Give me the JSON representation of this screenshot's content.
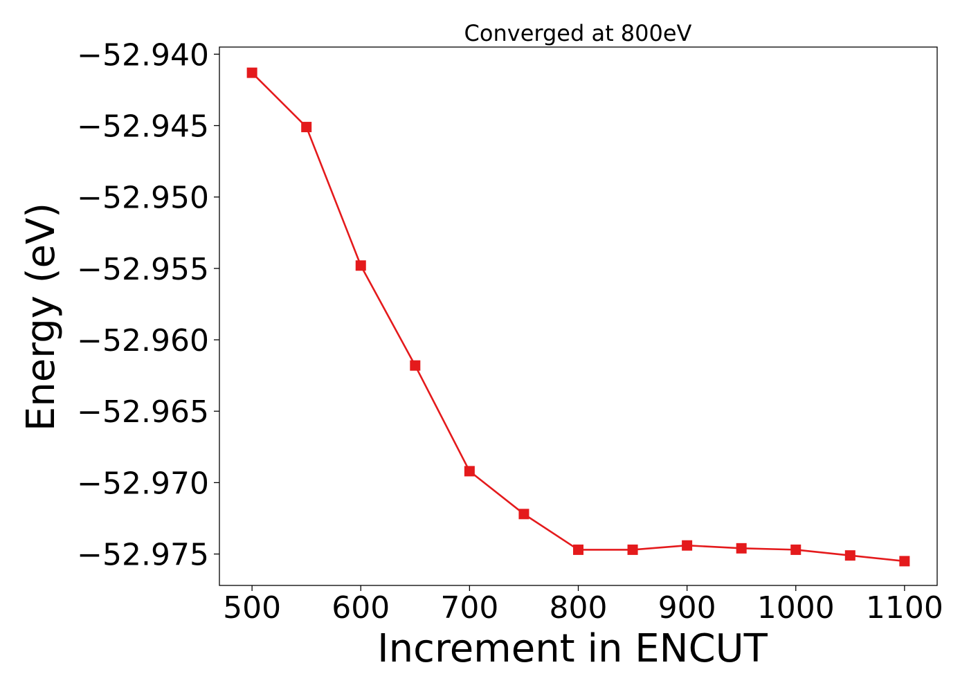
{
  "chart_data": {
    "type": "line",
    "title": "Converged at 800eV",
    "xlabel": "Increment in ENCUT",
    "ylabel": "Energy (eV)",
    "x": [
      500,
      550,
      600,
      650,
      700,
      750,
      800,
      850,
      900,
      950,
      1000,
      1050,
      1100
    ],
    "series": [
      {
        "values": [
          -52.9413,
          -52.9451,
          -52.9548,
          -52.9618,
          -52.9692,
          -52.9722,
          -52.9747,
          -52.9747,
          -52.9744,
          -52.9746,
          -52.9747,
          -52.9751,
          -52.9755
        ],
        "color": "#e41a1c",
        "marker": "square"
      }
    ],
    "xlim": [
      470,
      1130
    ],
    "ylim": [
      -52.9772,
      -52.9395
    ],
    "xticks": [
      500,
      600,
      700,
      800,
      900,
      1000,
      1100
    ],
    "xtick_labels": [
      "500",
      "600",
      "700",
      "800",
      "900",
      "1000",
      "1100"
    ],
    "yticks": [
      -52.94,
      -52.945,
      -52.95,
      -52.955,
      -52.96,
      -52.965,
      -52.97,
      -52.975
    ],
    "ytick_labels": [
      "−52.940",
      "−52.945",
      "−52.950",
      "−52.955",
      "−52.960",
      "−52.965",
      "−52.970",
      "−52.975"
    ],
    "grid": false,
    "legend": "none"
  }
}
